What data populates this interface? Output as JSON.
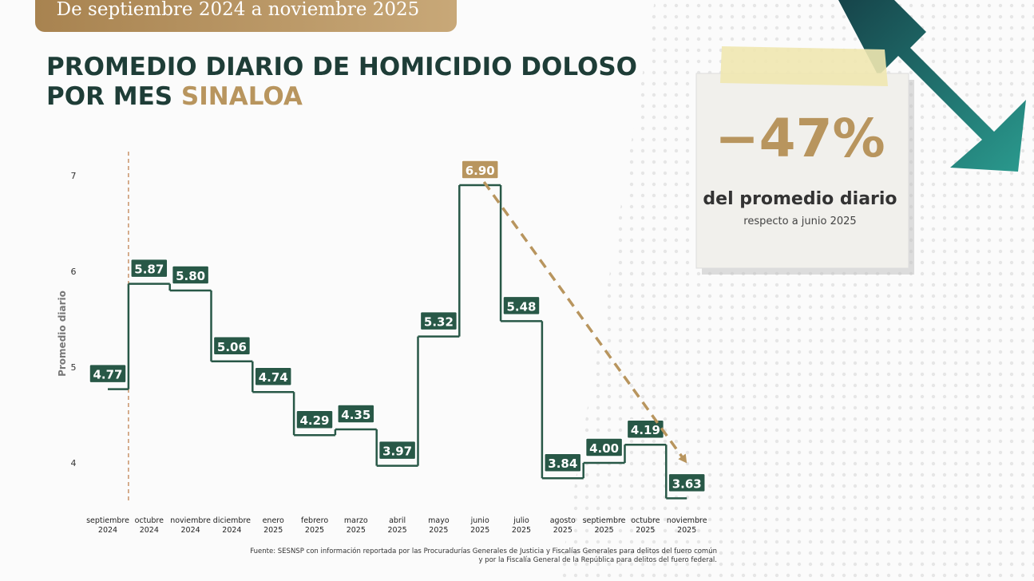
{
  "chart_data": {
    "type": "step",
    "badge": "De septiembre 2024 a noviembre 2025",
    "title_lines": [
      "PROMEDIO DIARIO DE HOMICIDIO DOLOSO",
      "POR MES"
    ],
    "title_highlight": "SINALOA",
    "y_label": "Promedio diario",
    "categories": [
      "septiembre 2024",
      "octubre 2024",
      "noviembre 2024",
      "diciembre 2024",
      "enero 2025",
      "febrero 2025",
      "marzo 2025",
      "abril 2025",
      "mayo 2025",
      "junio 2025",
      "julio 2025",
      "agosto 2025",
      "septiembre 2025",
      "octubre 2025",
      "noviembre 2025"
    ],
    "values": [
      4.77,
      5.87,
      5.8,
      5.06,
      4.74,
      4.29,
      4.35,
      3.97,
      5.32,
      6.9,
      5.48,
      3.84,
      4.0,
      4.19,
      3.63
    ],
    "value_labels": [
      "4.77",
      "5.87",
      "5.80",
      "5.06",
      "4.74",
      "4.29",
      "4.35",
      "3.97",
      "5.32",
      "6.90",
      "5.48",
      "3.84",
      "4.00",
      "4.19",
      "3.63"
    ],
    "color": "#285847",
    "highlight_color": "#b8955e",
    "ylim": [
      3.5,
      7.5
    ],
    "yticks": [
      4,
      5,
      6,
      7
    ],
    "callout": {
      "value": "−47%",
      "text": "del promedio diario",
      "subtext": "respecto a junio 2025"
    },
    "source": [
      "Fuente: SESNSP con información reportada por las Procuradurías Generales de Justicia y Fiscalías Generales para delitos del fuero común",
      "y por la Fiscalía General de la República para delitos del fuero federal."
    ]
  }
}
